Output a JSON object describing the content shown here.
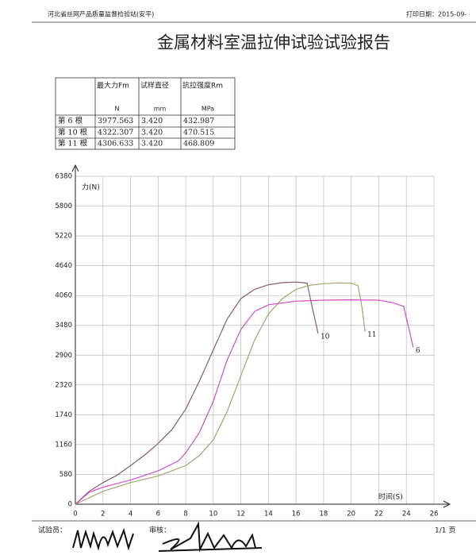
{
  "header": {
    "org": "河北省丝网产品质量监督检验站(安平)",
    "print_date": "打印日期：2015-09-"
  },
  "title": "金属材料室温拉伸试验试验报告",
  "table": {
    "columns": [
      "",
      "最大力Fm",
      "试样直径",
      "抗拉强度Rm"
    ],
    "units": [
      "",
      "N",
      "mm",
      "MPa"
    ],
    "rows": [
      [
        "第 6 根",
        "3977.563",
        "3.420",
        "432.987"
      ],
      [
        "第 10 根",
        "4322.307",
        "3.420",
        "470.515"
      ],
      [
        "第 11 根",
        "4306.633",
        "3.420",
        "468.809"
      ]
    ]
  },
  "chart_data": {
    "type": "line",
    "y_label": "力(N)",
    "x_label": "时间(S)",
    "xlim": [
      0,
      26
    ],
    "xticks": [
      0,
      2,
      4,
      6,
      8,
      10,
      12,
      14,
      16,
      18,
      20,
      22,
      24,
      26
    ],
    "ylim": [
      0,
      6380
    ],
    "yticks": [
      0,
      580,
      1160,
      1740,
      2320,
      2900,
      3480,
      4060,
      4640,
      5220,
      5800,
      6380
    ],
    "grid": true,
    "series": [
      {
        "name": "10",
        "color": "#8a5a70",
        "x": [
          0,
          1,
          2,
          3,
          4,
          5,
          6,
          7,
          8,
          9,
          10,
          11,
          12,
          13,
          14,
          15,
          16,
          16.8,
          17.2,
          17.6
        ],
        "values": [
          0,
          250,
          420,
          560,
          750,
          950,
          1180,
          1450,
          1850,
          2400,
          3000,
          3600,
          4000,
          4180,
          4270,
          4310,
          4322,
          4300,
          3800,
          3320
        ]
      },
      {
        "name": "11",
        "color": "#a9a072",
        "x": [
          0,
          2,
          4,
          6,
          8,
          9,
          10,
          11,
          12,
          13,
          14,
          15,
          16,
          17,
          18,
          19,
          20,
          20.5,
          20.8,
          21
        ],
        "values": [
          0,
          250,
          420,
          550,
          750,
          950,
          1250,
          1800,
          2500,
          3200,
          3700,
          4000,
          4180,
          4260,
          4290,
          4306,
          4300,
          4250,
          3800,
          3360
        ]
      },
      {
        "name": "6",
        "color": "#d24fc2",
        "x": [
          0,
          1,
          2,
          4,
          6,
          7,
          7.5,
          8,
          9,
          10,
          11,
          12,
          13,
          14,
          16,
          18,
          20,
          22,
          23,
          23.8,
          24.2,
          24.5
        ],
        "values": [
          0,
          230,
          330,
          470,
          650,
          780,
          850,
          1000,
          1400,
          2000,
          2800,
          3400,
          3750,
          3880,
          3950,
          3970,
          3977,
          3970,
          3920,
          3850,
          3400,
          3050
        ]
      }
    ]
  },
  "footer": {
    "tester": "试验员：",
    "reviewer": "审核：",
    "page": "1/1 页"
  }
}
